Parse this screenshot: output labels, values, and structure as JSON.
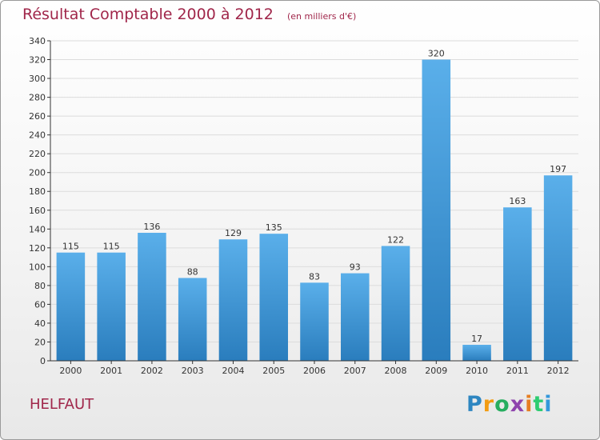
{
  "header": {
    "title": "Résultat Comptable 2000 à 2012",
    "subtitle": "(en milliers d'€)"
  },
  "footer": {
    "place": "HELFAUT",
    "logo_letters": [
      {
        "char": "P",
        "color": "#2e86c1"
      },
      {
        "char": "r",
        "color": "#f39c12"
      },
      {
        "char": "o",
        "color": "#27ae60"
      },
      {
        "char": "x",
        "color": "#8e44ad"
      },
      {
        "char": "i",
        "color": "#e67e22"
      },
      {
        "char": "t",
        "color": "#2ecc71"
      },
      {
        "char": "i",
        "color": "#3498db"
      }
    ]
  },
  "colors": {
    "bar_top": "#5aafea",
    "bar_bottom": "#2a7dbd",
    "grid": "#dcdcdc",
    "axis": "#333333",
    "title": "#a0264a"
  },
  "chart_data": {
    "type": "bar",
    "title": "Résultat Comptable 2000 à 2012",
    "subtitle": "(en milliers d'€)",
    "xlabel": "",
    "ylabel": "",
    "categories": [
      "2000",
      "2001",
      "2002",
      "2003",
      "2004",
      "2005",
      "2006",
      "2007",
      "2008",
      "2009",
      "2010",
      "2011",
      "2012"
    ],
    "values": [
      115,
      115,
      136,
      88,
      129,
      135,
      83,
      93,
      122,
      320,
      17,
      163,
      197
    ],
    "ylim": [
      0,
      340
    ],
    "ytick_step": 20,
    "grid": true,
    "legend": "none"
  }
}
